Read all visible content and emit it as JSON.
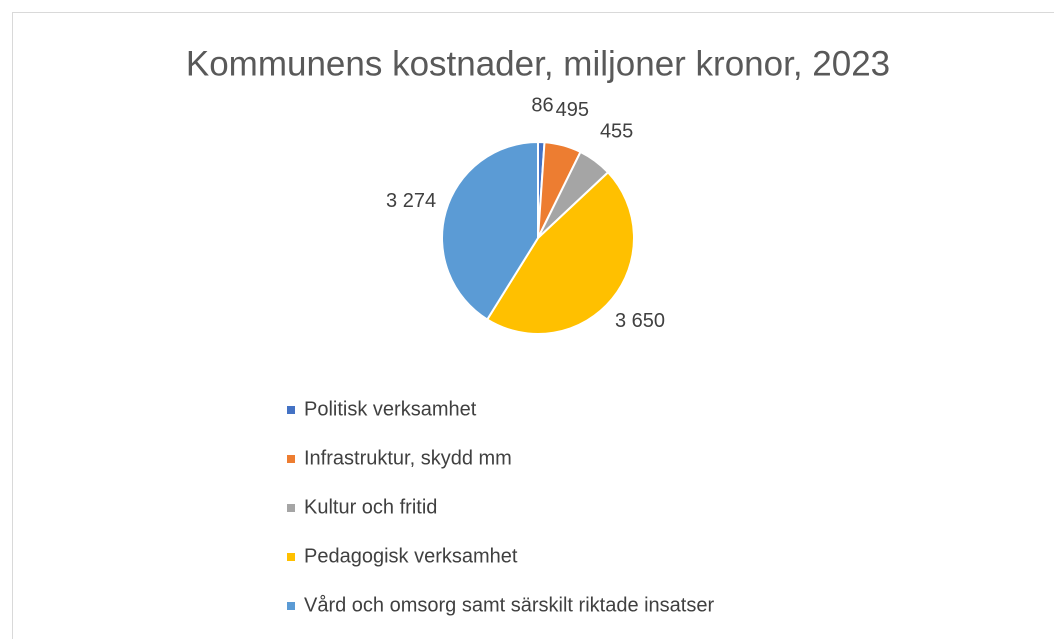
{
  "chart_data": {
    "type": "pie",
    "title": "Kommunens kostnader, miljoner kronor, 2023",
    "categories": [
      "Politisk verksamhet",
      "Infrastruktur, skydd mm",
      "Kultur och fritid",
      "Pedagogisk verksamhet",
      "Vård och omsorg samt särskilt riktade insatser"
    ],
    "values": [
      86,
      495,
      455,
      3650,
      3274
    ],
    "value_labels": [
      "86",
      "495",
      "455",
      "3 650",
      "3 274"
    ],
    "colors": [
      "#4472c4",
      "#ed7d31",
      "#a5a5a5",
      "#ffc000",
      "#5b9bd5"
    ],
    "legend": "bottom"
  }
}
